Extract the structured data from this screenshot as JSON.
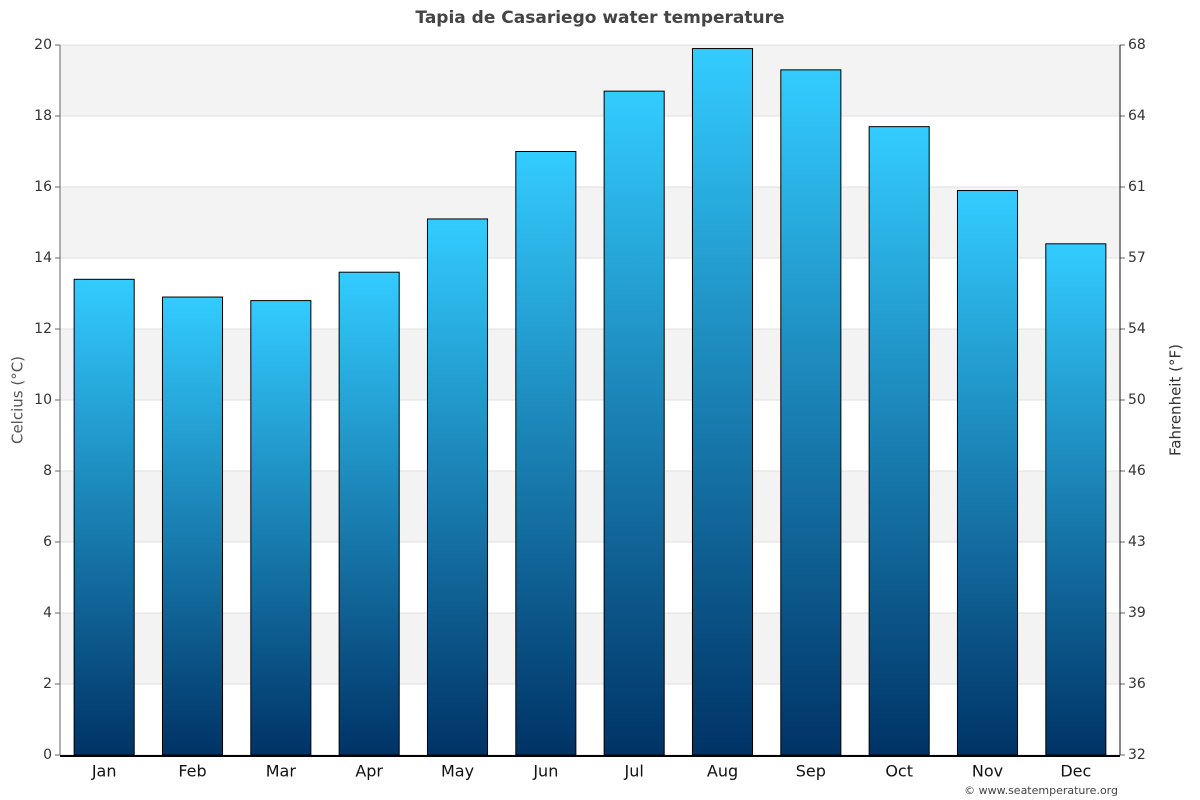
{
  "chart_data": {
    "type": "bar",
    "title": "Tapia de Casariego water temperature",
    "categories": [
      "Jan",
      "Feb",
      "Mar",
      "Apr",
      "May",
      "Jun",
      "Jul",
      "Aug",
      "Sep",
      "Oct",
      "Nov",
      "Dec"
    ],
    "values": [
      13.4,
      12.9,
      12.8,
      13.6,
      15.1,
      17.0,
      18.7,
      19.9,
      19.3,
      17.7,
      15.9,
      14.4
    ],
    "gradient": [
      "#33ccff",
      "#003366"
    ],
    "y_label": "Celcius (°C)",
    "y2_label": "Fahrenheit (°F)",
    "ylim": [
      0,
      20
    ],
    "yticks": [
      0,
      2,
      4,
      6,
      8,
      10,
      12,
      14,
      16,
      18,
      20
    ],
    "y2lim": [
      32,
      68
    ],
    "y2ticks": [
      32,
      {
        "value": 35.6,
        "label": "36"
      },
      {
        "value": 39.2,
        "label": "39"
      },
      {
        "value": 42.8,
        "label": "43"
      },
      {
        "value": 46.4,
        "label": "46"
      },
      50,
      {
        "value": 53.6,
        "label": "54"
      },
      {
        "value": 57.2,
        "label": "57"
      },
      {
        "value": 60.8,
        "label": "61"
      },
      {
        "value": 64.4,
        "label": "64"
      },
      68
    ],
    "grid": true,
    "credit": "© www.seatemperature.org"
  }
}
